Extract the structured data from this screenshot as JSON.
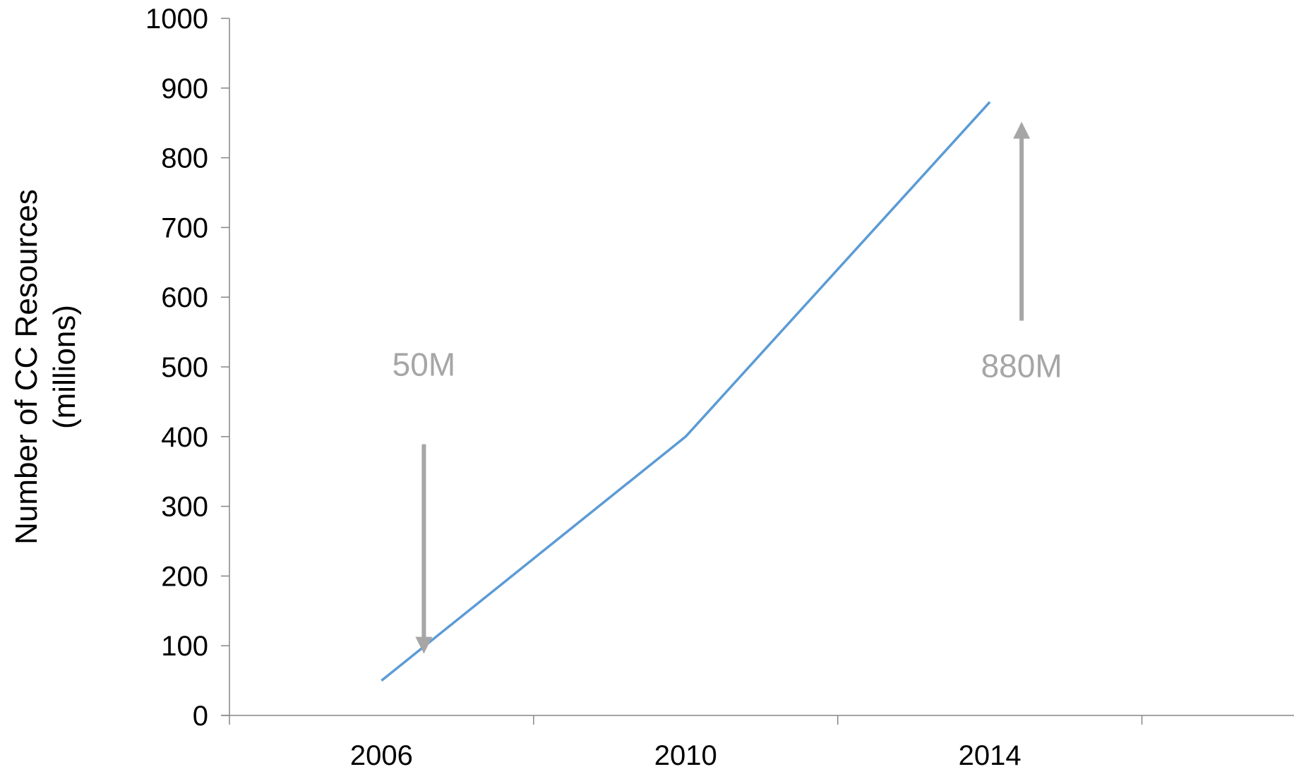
{
  "chart_data": {
    "type": "line",
    "title": "",
    "xlabel": "",
    "ylabel_lines": [
      "Number of CC Resources",
      "(millions)"
    ],
    "x_categories": [
      "2006",
      "2010",
      "2014"
    ],
    "x": [
      2006,
      2010,
      2014
    ],
    "y": [
      50,
      400,
      880
    ],
    "ylim": [
      0,
      1000
    ],
    "yticks": [
      0,
      100,
      200,
      300,
      400,
      500,
      600,
      700,
      800,
      900,
      1000
    ],
    "grid": false,
    "legend": "none",
    "line_color": "#5b9bd5",
    "annotations": [
      {
        "text": "50M",
        "points_to_x": 2006,
        "arrow_direction": "down",
        "color": "#a6a6a6"
      },
      {
        "text": "880M",
        "points_to_x": 2014,
        "arrow_direction": "up",
        "color": "#a6a6a6"
      }
    ],
    "axis_color": "#868686"
  }
}
